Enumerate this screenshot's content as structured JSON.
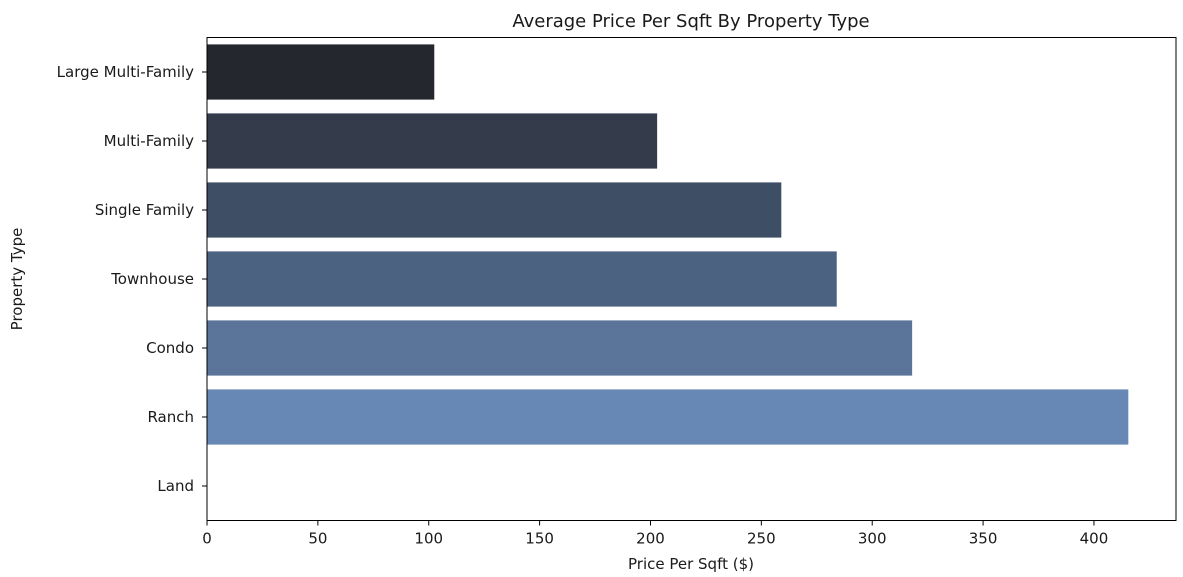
{
  "chart_data": {
    "type": "bar",
    "orientation": "horizontal",
    "title": "Average Price Per Sqft By Property Type",
    "xlabel": "Price Per Sqft ($)",
    "ylabel": "Property Type",
    "xlim": [
      0,
      437
    ],
    "xticks": [
      0,
      50,
      100,
      150,
      200,
      250,
      300,
      350,
      400
    ],
    "grid": false,
    "legend": false,
    "categories": [
      "Large Multi-Family",
      "Multi-Family",
      "Single Family",
      "Townhouse",
      "Condo",
      "Ranch",
      "Land"
    ],
    "values": [
      102.5,
      203,
      259,
      284,
      318,
      415.5,
      0
    ],
    "colors": [
      "#25272e",
      "#343b4b",
      "#3e4e65",
      "#4c6281",
      "#5a7599",
      "#6787b4",
      "#ffffff"
    ]
  }
}
